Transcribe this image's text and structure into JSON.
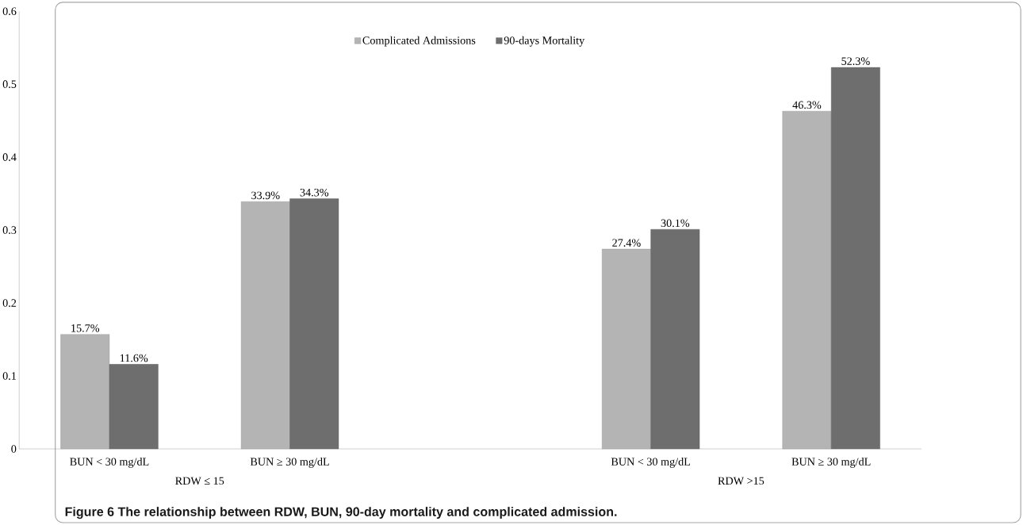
{
  "chart_data": {
    "type": "bar",
    "categories": [
      "BUN < 30 mg/dL",
      "BUN ≥ 30 mg/dL",
      null,
      "BUN < 30 mg/dL",
      "BUN ≥ 30 mg/dL"
    ],
    "series": [
      {
        "name": "Complicated Admissions",
        "color": "#b4b4b4",
        "values": [
          0.157,
          0.339,
          null,
          0.274,
          0.463
        ],
        "value_labels": [
          "15.7%",
          "33.9%",
          null,
          "27.4%",
          "46.3%"
        ]
      },
      {
        "name": "90-days Mortality",
        "color": "#6e6e6e",
        "values": [
          0.116,
          0.343,
          null,
          0.301,
          0.523
        ],
        "value_labels": [
          "11.6%",
          "34.3%",
          null,
          "30.1%",
          "52.3%"
        ]
      }
    ],
    "ylim": [
      0,
      0.6
    ],
    "yticks": [
      0,
      0.1,
      0.2,
      0.3,
      0.4,
      0.5,
      0.6
    ],
    "legend": "top",
    "grid": false,
    "annotations": [
      "RDW ≤ 15",
      "RDW >15",
      "Figure 6 The relationship between RDW, BUN, 90-day mortality and complicated admission."
    ]
  }
}
